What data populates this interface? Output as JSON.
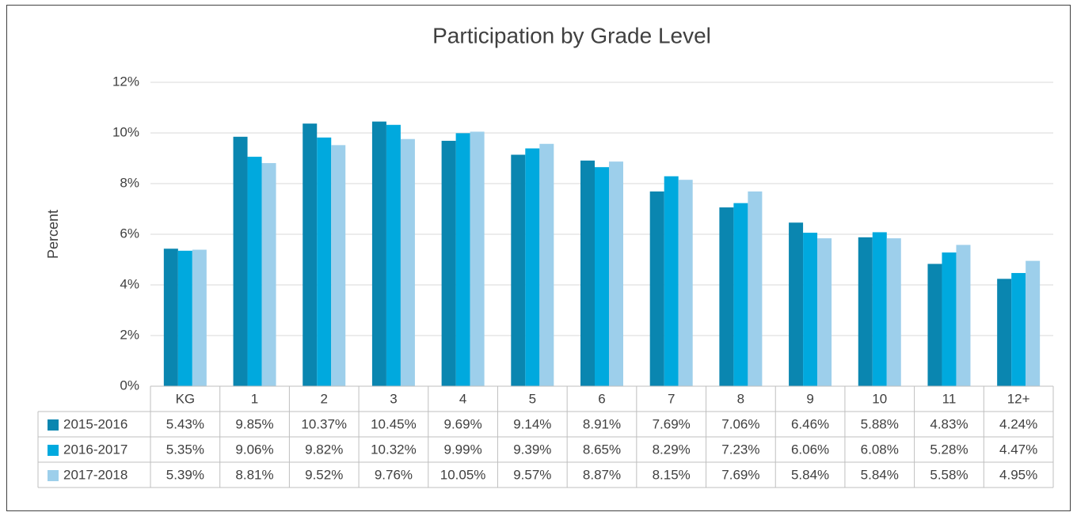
{
  "chart_data": {
    "type": "bar",
    "title": "Participation by Grade Level",
    "ylabel": "Percent",
    "categories": [
      "KG",
      "1",
      "2",
      "3",
      "4",
      "5",
      "6",
      "7",
      "8",
      "9",
      "10",
      "11",
      "12+"
    ],
    "series": [
      {
        "name": "2015-2016",
        "color": "#0a86b0",
        "values": [
          5.43,
          9.85,
          10.37,
          10.45,
          9.69,
          9.14,
          8.91,
          7.69,
          7.06,
          6.46,
          5.88,
          4.83,
          4.24
        ],
        "value_labels": [
          "5.43%",
          "9.85%",
          "10.37%",
          "10.45%",
          "9.69%",
          "9.14%",
          "8.91%",
          "7.69%",
          "7.06%",
          "6.46%",
          "5.88%",
          "4.83%",
          "4.24%"
        ]
      },
      {
        "name": "2016-2017",
        "color": "#00a9de",
        "values": [
          5.35,
          9.06,
          9.82,
          10.32,
          9.99,
          9.39,
          8.65,
          8.29,
          7.23,
          6.06,
          6.08,
          5.28,
          4.47
        ],
        "value_labels": [
          "5.35%",
          "9.06%",
          "9.82%",
          "10.32%",
          "9.99%",
          "9.39%",
          "8.65%",
          "8.29%",
          "7.23%",
          "6.06%",
          "6.08%",
          "5.28%",
          "4.47%"
        ]
      },
      {
        "name": "2017-2018",
        "color": "#9dcfeb",
        "values": [
          5.39,
          8.81,
          9.52,
          9.76,
          10.05,
          9.57,
          8.87,
          8.15,
          7.69,
          5.84,
          5.84,
          5.58,
          4.95
        ],
        "value_labels": [
          "5.39%",
          "8.81%",
          "9.52%",
          "9.76%",
          "10.05%",
          "9.57%",
          "8.87%",
          "8.15%",
          "7.69%",
          "5.84%",
          "5.84%",
          "5.58%",
          "4.95%"
        ]
      }
    ],
    "ylim": [
      0,
      12
    ],
    "yticks": [
      {
        "value": 0,
        "label": "0%"
      },
      {
        "value": 2,
        "label": "2%"
      },
      {
        "value": 4,
        "label": "4%"
      },
      {
        "value": 6,
        "label": "6%"
      },
      {
        "value": 8,
        "label": "8%"
      },
      {
        "value": 10,
        "label": "10%"
      },
      {
        "value": 12,
        "label": "12%"
      }
    ],
    "grid": true
  }
}
